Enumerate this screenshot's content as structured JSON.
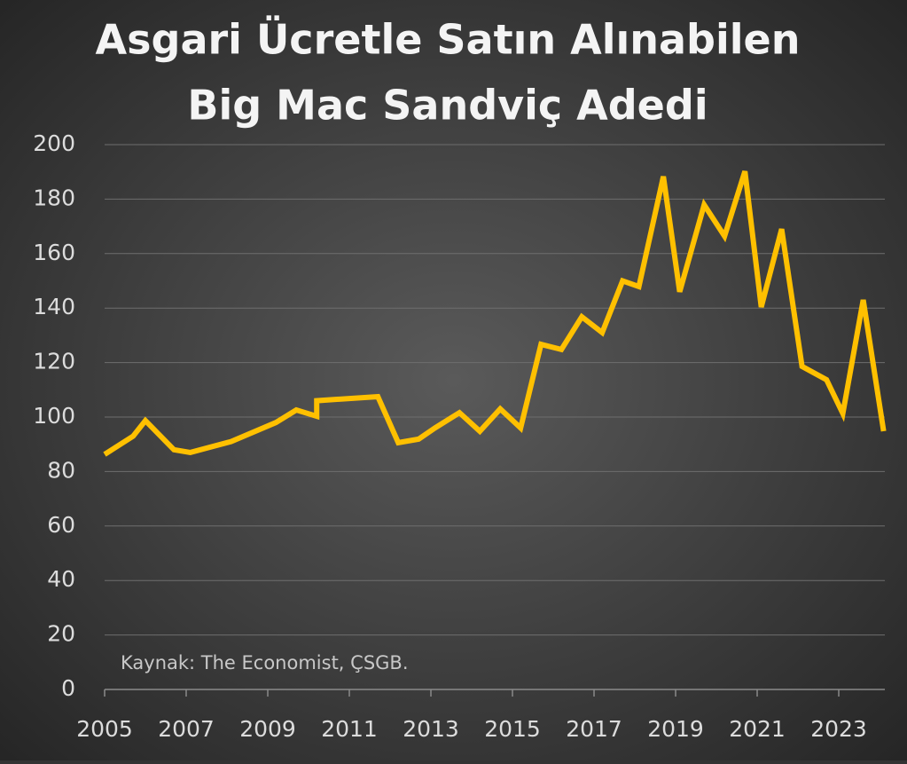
{
  "chart_data": {
    "type": "line",
    "title": [
      "Asgari Ücretle Satın Alınabilen",
      "Big Mac Sandviç Adedi"
    ],
    "annotation": "Kaynak: The Economist, ÇSGB.",
    "x": [
      2005.0,
      2005.7,
      2006.0,
      2006.7,
      2007.1,
      2008.1,
      2009.2,
      2009.7,
      2010.2,
      2010.2,
      2011.7,
      2012.2,
      2012.7,
      2013.1,
      2013.7,
      2014.2,
      2014.7,
      2015.2,
      2015.7,
      2016.2,
      2016.7,
      2017.2,
      2017.7,
      2018.1,
      2018.7,
      2019.1,
      2019.7,
      2020.2,
      2020.7,
      2021.1,
      2021.6,
      2022.1,
      2022.7,
      2023.1,
      2023.6,
      2024.1
    ],
    "series": [
      {
        "color": "#ffc000",
        "values": [
          86.3,
          93,
          98.7,
          88,
          87,
          91,
          98,
          102.6,
          100.3,
          106,
          107.5,
          90.6,
          91.9,
          96,
          101.6,
          94.8,
          103,
          96,
          126.7,
          124.8,
          136.8,
          131,
          150,
          147.9,
          188.3,
          146,
          177.9,
          166.4,
          190.2,
          140.4,
          169,
          118.6,
          113.7,
          101.3,
          143,
          94.8
        ]
      }
    ],
    "xlim": [
      2005,
      2024.13
    ],
    "xticks": [
      2005,
      2007,
      2009,
      2011,
      2013,
      2015,
      2017,
      2019,
      2021,
      2023
    ],
    "ylim": [
      0,
      200
    ],
    "yticks": [
      0,
      20,
      40,
      60,
      80,
      100,
      120,
      140,
      160,
      180,
      200
    ],
    "grid": true
  }
}
